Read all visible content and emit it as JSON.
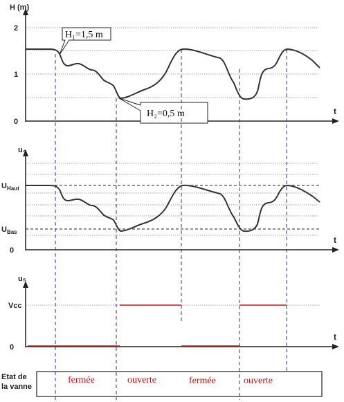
{
  "graph1": {
    "y_label": "H (m)",
    "t_label": "t",
    "ticks": [
      "2",
      "1",
      "0"
    ],
    "callout1": "H₁=1,5 m",
    "callout2": "H₂=0,5 m"
  },
  "graph2": {
    "y_label": "u₄",
    "t_label": "t",
    "level_high": "U_Haut",
    "level_low": "U_Bas",
    "zero": "0"
  },
  "graph3": {
    "y_label": "u₅",
    "t_label": "t",
    "level_vcc": "Vcc",
    "zero": "0"
  },
  "valve": {
    "row_label_line1": "Etat de",
    "row_label_line2": "la vanne",
    "states": [
      "fermée",
      "ouverte",
      "fermée",
      "ouverte"
    ]
  },
  "colors": {
    "axis": "#222222",
    "grid": "#8a8a8a",
    "curve": "#333333",
    "dashed_blue": "#2233aa",
    "signal_red": "#cc1111"
  }
}
